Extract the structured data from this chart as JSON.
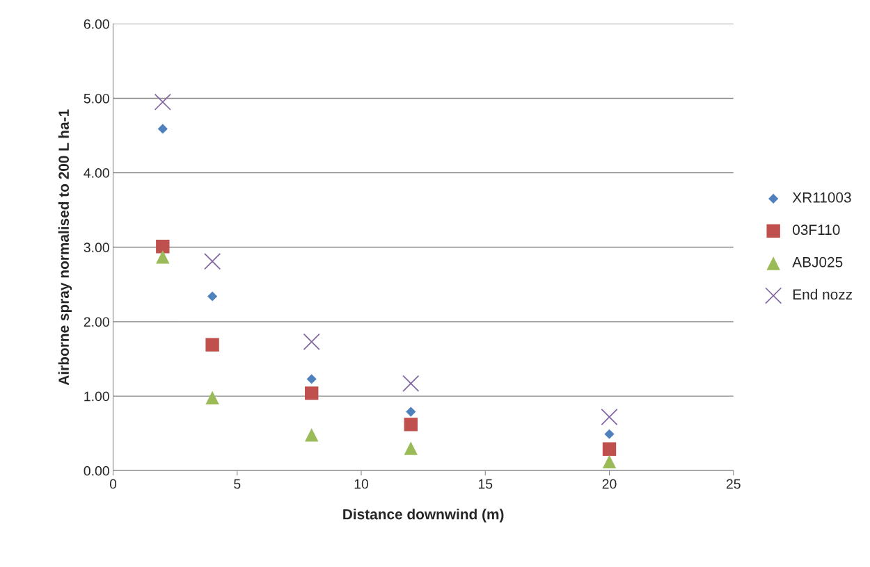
{
  "chart_data": {
    "type": "scatter",
    "xlabel": "Distance downwind (m)",
    "ylabel": "Airborne spray normalised to 200 L ha-1",
    "x": [
      2,
      4,
      8,
      12,
      20
    ],
    "series": [
      {
        "name": "XR11003",
        "color": "#4f81bd",
        "marker": "diamond",
        "values": [
          4.59,
          2.34,
          1.23,
          0.79,
          0.49
        ]
      },
      {
        "name": "03F110",
        "color": "#c0504d",
        "marker": "square",
        "values": [
          3.01,
          1.69,
          1.04,
          0.62,
          0.29
        ]
      },
      {
        "name": "ABJ025",
        "color": "#9bbb59",
        "marker": "triangle",
        "values": [
          2.87,
          0.98,
          0.48,
          0.3,
          0.12
        ]
      },
      {
        "name": "End nozz",
        "color": "#8064a2",
        "marker": "cross",
        "values": [
          4.95,
          2.81,
          1.73,
          1.17,
          0.72
        ]
      }
    ],
    "xlim": [
      0,
      25
    ],
    "xticks": [
      0,
      5,
      10,
      15,
      20,
      25
    ],
    "ylim": [
      0,
      6
    ],
    "yticks": [
      {
        "value": 0,
        "label": "0.00"
      },
      {
        "value": 1,
        "label": "1.00"
      },
      {
        "value": 2,
        "label": "2.00"
      },
      {
        "value": 3,
        "label": "3.00"
      },
      {
        "value": 4,
        "label": "4.00"
      },
      {
        "value": 5,
        "label": "5.00"
      },
      {
        "value": 6,
        "label": "6.00"
      }
    ],
    "grid": "y",
    "legend": "right"
  }
}
